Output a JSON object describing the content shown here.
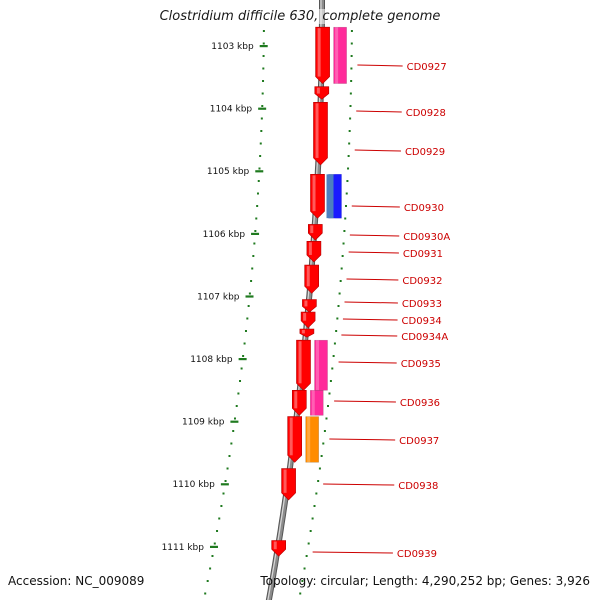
{
  "title": "Clostridium difficile 630, complete genome",
  "accession": "Accession: NC_009089",
  "summary": "Topology: circular; Length: 4,290,252 bp; Genes: 3,926",
  "colors": {
    "backbone": "#8c8c8c",
    "tick": "#1f7a1f",
    "gene_red": "#ff0000",
    "label_red": "#cc0000",
    "cds_magenta": "#ff2a9a",
    "cds_blue": "#1a1aff",
    "cds_steelblue": "#4d7fbf",
    "cds_orange": "#ff8c00"
  },
  "scale": {
    "unit": "kbp",
    "ticks": [
      "1103 kbp",
      "1104 kbp",
      "1105 kbp",
      "1106 kbp",
      "1107 kbp",
      "1108 kbp",
      "1109 kbp",
      "1110 kbp",
      "1111 kbp"
    ]
  },
  "genes": [
    {
      "label": "CD0927",
      "start": 1102.7,
      "end": 1103.6,
      "strand": "-",
      "cds": "magenta"
    },
    {
      "label": "CD0928",
      "start": 1103.65,
      "end": 1103.85,
      "strand": "-"
    },
    {
      "label": "CD0929",
      "start": 1103.9,
      "end": 1104.9,
      "strand": "-"
    },
    {
      "label": "CD0930",
      "start": 1105.05,
      "end": 1105.75,
      "strand": "-",
      "cds": "blue",
      "cds2": "steelblue"
    },
    {
      "label": "CD0930A",
      "start": 1105.85,
      "end": 1106.1,
      "strand": "-"
    },
    {
      "label": "CD0931",
      "start": 1106.12,
      "end": 1106.45,
      "strand": "-"
    },
    {
      "label": "CD0932",
      "start": 1106.5,
      "end": 1106.95,
      "strand": "-"
    },
    {
      "label": "CD0933",
      "start": 1107.05,
      "end": 1107.25,
      "strand": "-"
    },
    {
      "label": "CD0934",
      "start": 1107.25,
      "end": 1107.5,
      "strand": "-"
    },
    {
      "label": "CD0934A",
      "start": 1107.52,
      "end": 1107.65,
      "strand": "-"
    },
    {
      "label": "CD0935",
      "start": 1107.7,
      "end": 1108.5,
      "strand": "-",
      "cds": "magenta"
    },
    {
      "label": "CD0936",
      "start": 1108.5,
      "end": 1108.9,
      "strand": "-",
      "cds": "magenta"
    },
    {
      "label": "CD0937",
      "start": 1108.92,
      "end": 1109.65,
      "strand": "-",
      "cds": "orange"
    },
    {
      "label": "CD0938",
      "start": 1109.75,
      "end": 1110.25,
      "strand": "-"
    },
    {
      "label": "CD0939",
      "start": 1110.9,
      "end": 1111.15,
      "strand": "-"
    }
  ]
}
